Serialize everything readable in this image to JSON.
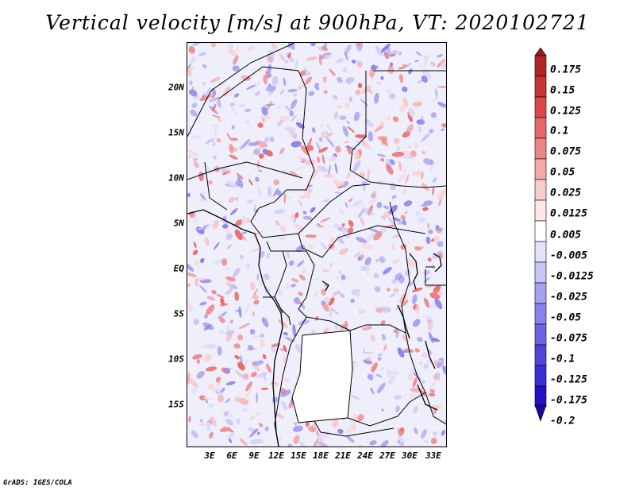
{
  "title": "Vertical velocity [m/s] at 900hPa, VT: 2020102721",
  "credit": "GrADS: IGES/COLA",
  "colors": {
    "positive": "#e8474a",
    "negative": "#6a5de8",
    "border": "#000000"
  },
  "y_axis": [
    "20N",
    "15N",
    "10N",
    "5N",
    "EQ",
    "5S",
    "10S",
    "15S"
  ],
  "x_axis": [
    "3E",
    "6E",
    "9E",
    "12E",
    "15E",
    "18E",
    "21E",
    "24E",
    "27E",
    "30E",
    "33E"
  ],
  "colorbar": {
    "levels": [
      "0.175",
      "0.15",
      "0.125",
      "0.1",
      "0.075",
      "0.05",
      "0.025",
      "0.0125",
      "0.005",
      "-0.005",
      "-0.0125",
      "-0.025",
      "-0.05",
      "-0.075",
      "-0.1",
      "-0.125",
      "-0.175",
      "-0.2"
    ],
    "colors": [
      "#9b1b1b",
      "#b32424",
      "#c93434",
      "#dc4747",
      "#e76868",
      "#ee8585",
      "#f4a8a8",
      "#f8cccc",
      "#fce7e7",
      "#ffffff",
      "#e3e2fb",
      "#c8c5f7",
      "#a6a0f1",
      "#8982ec",
      "#6c63e6",
      "#4f45dd",
      "#3a2fd3",
      "#2412c2",
      "#1a0699"
    ]
  }
}
